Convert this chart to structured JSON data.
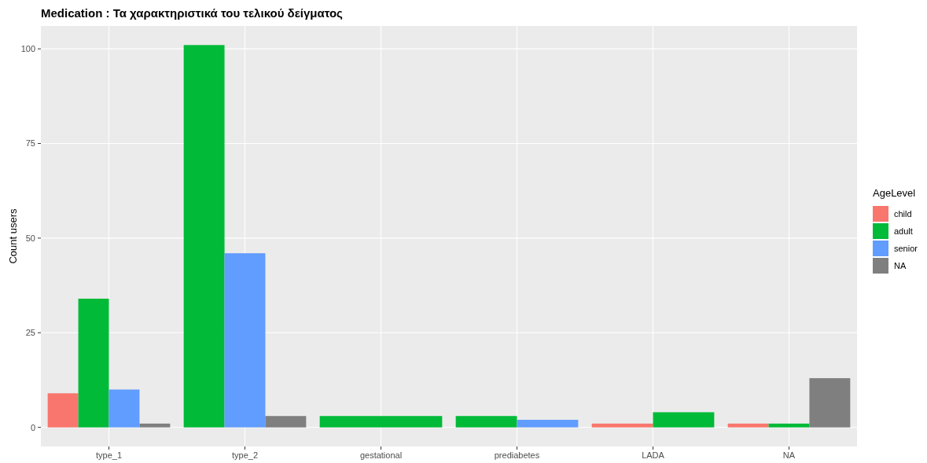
{
  "chart_data": {
    "type": "bar",
    "title": "Medication : Τα χαρακτηριστικά του τελικού δείγματος",
    "ylabel": "Count users",
    "legend_title": "AgeLevel",
    "categories": [
      "type_1",
      "type_2",
      "gestational",
      "prediabetes",
      "LADA",
      "NA"
    ],
    "series": [
      {
        "name": "child",
        "color": "#f8766d",
        "values": [
          9,
          null,
          null,
          null,
          1,
          1
        ]
      },
      {
        "name": "adult",
        "color": "#00ba38",
        "values": [
          34,
          101,
          3,
          3,
          4,
          1
        ]
      },
      {
        "name": "senior",
        "color": "#619cff",
        "values": [
          10,
          46,
          null,
          2,
          null,
          null
        ]
      },
      {
        "name": "NA",
        "color": "#7f7f7f",
        "values": [
          1,
          3,
          null,
          null,
          null,
          13
        ]
      }
    ],
    "ylim": [
      -5.05,
      106.05
    ],
    "yticks": [
      0,
      25,
      50,
      75,
      100
    ],
    "grid": true,
    "legend": "right"
  }
}
